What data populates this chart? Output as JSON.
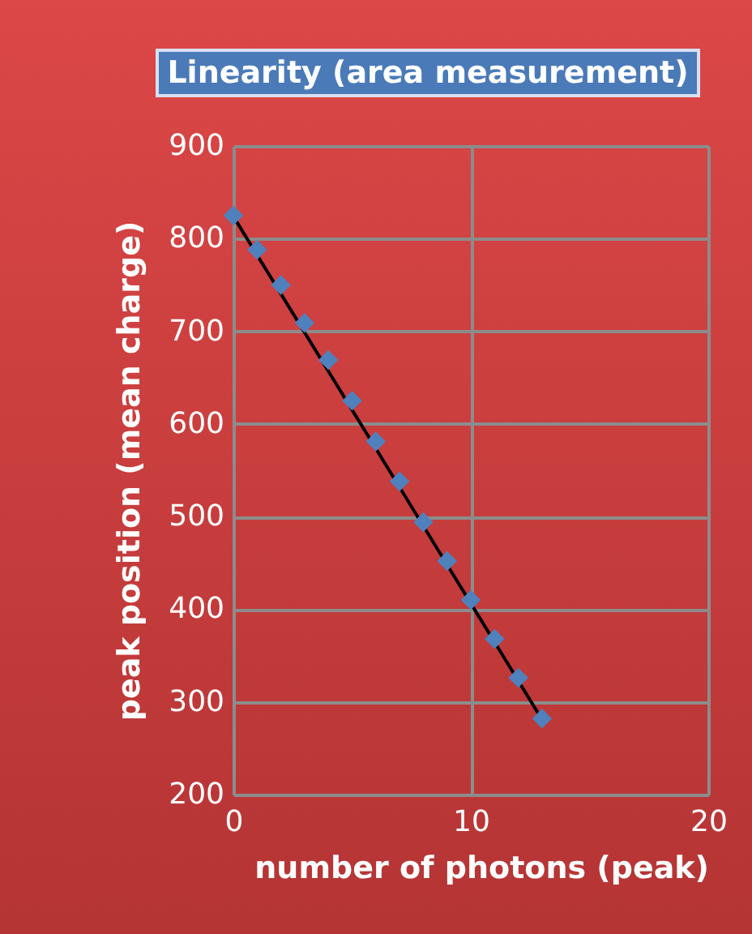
{
  "chart_data": {
    "type": "scatter",
    "title": "Linearity (area measurement)",
    "xlabel": "number of photons (peak)",
    "ylabel": "peak position (mean charge)",
    "x": [
      0,
      1,
      2,
      3,
      4,
      5,
      6,
      7,
      8,
      9,
      10,
      11,
      12,
      13
    ],
    "series": [
      {
        "type": "line",
        "color": "#000000",
        "marker": "none",
        "line_style": "solid",
        "x": [
          0,
          13
        ],
        "values": [
          824,
          281
        ]
      },
      {
        "color": "#4f81bd",
        "marker": "diamond",
        "values": [
          825,
          788,
          750,
          709,
          669,
          625,
          581,
          538,
          494,
          452,
          410,
          368,
          326,
          282
        ]
      }
    ],
    "xlim": [
      0,
      20
    ],
    "xticks": [
      0,
      10,
      20
    ],
    "ylim": [
      200,
      900
    ],
    "yticks": [
      200,
      300,
      400,
      500,
      600,
      700,
      800,
      900
    ],
    "grid": true
  }
}
